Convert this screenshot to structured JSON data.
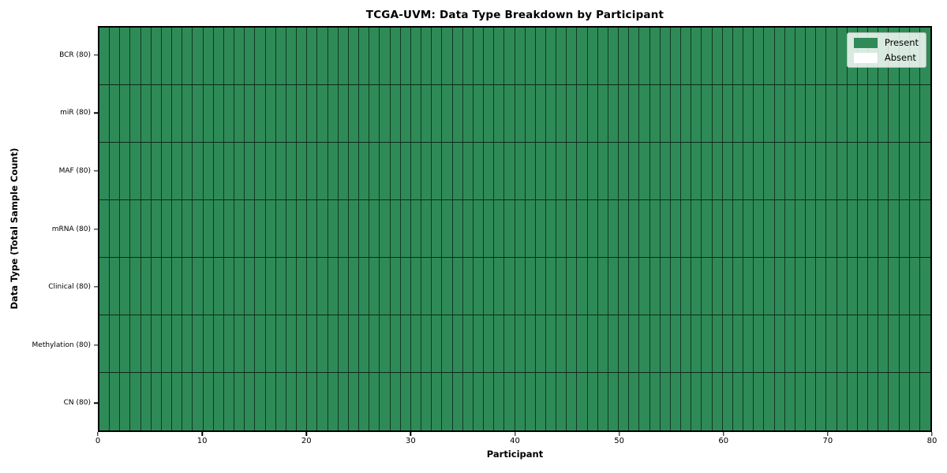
{
  "chart": {
    "title": "TCGA-UVM: Data Type Breakdown by Participant",
    "xlabel": "Participant",
    "ylabel": "Data Type (Total Sample Count)"
  },
  "legend": {
    "position": "upper right",
    "items": [
      {
        "label": "Present",
        "color": "#2e8b57"
      },
      {
        "label": "Absent",
        "color": "#ffffff"
      }
    ]
  },
  "chart_data": {
    "type": "heatmap",
    "title": "TCGA-UVM: Data Type Breakdown by Participant",
    "xlabel": "Participant",
    "ylabel": "Data Type (Total Sample Count)",
    "xlim": [
      0,
      80
    ],
    "x_ticks": [
      0,
      10,
      20,
      30,
      40,
      50,
      60,
      70,
      80
    ],
    "n_participants": 80,
    "grid": "off",
    "legend_position": "upper right",
    "rows": [
      {
        "label": "BCR (80)",
        "data_type": "BCR",
        "total_samples": 80,
        "present_count": 80,
        "absent_count": 0
      },
      {
        "label": "miR (80)",
        "data_type": "miR",
        "total_samples": 80,
        "present_count": 80,
        "absent_count": 0
      },
      {
        "label": "MAF (80)",
        "data_type": "MAF",
        "total_samples": 80,
        "present_count": 80,
        "absent_count": 0
      },
      {
        "label": "mRNA (80)",
        "data_type": "mRNA",
        "total_samples": 80,
        "present_count": 80,
        "absent_count": 0
      },
      {
        "label": "Clinical (80)",
        "data_type": "Clinical",
        "total_samples": 80,
        "present_count": 80,
        "absent_count": 0
      },
      {
        "label": "Methylation (80)",
        "data_type": "Methylation",
        "total_samples": 80,
        "present_count": 80,
        "absent_count": 0
      },
      {
        "label": "CN (80)",
        "data_type": "CN",
        "total_samples": 80,
        "present_count": 80,
        "absent_count": 0
      }
    ],
    "colors": {
      "present": "#2e8b57",
      "absent": "#ffffff",
      "cell_border": "rgba(0,0,0,0.6)",
      "axes_spine": "#000000"
    }
  }
}
